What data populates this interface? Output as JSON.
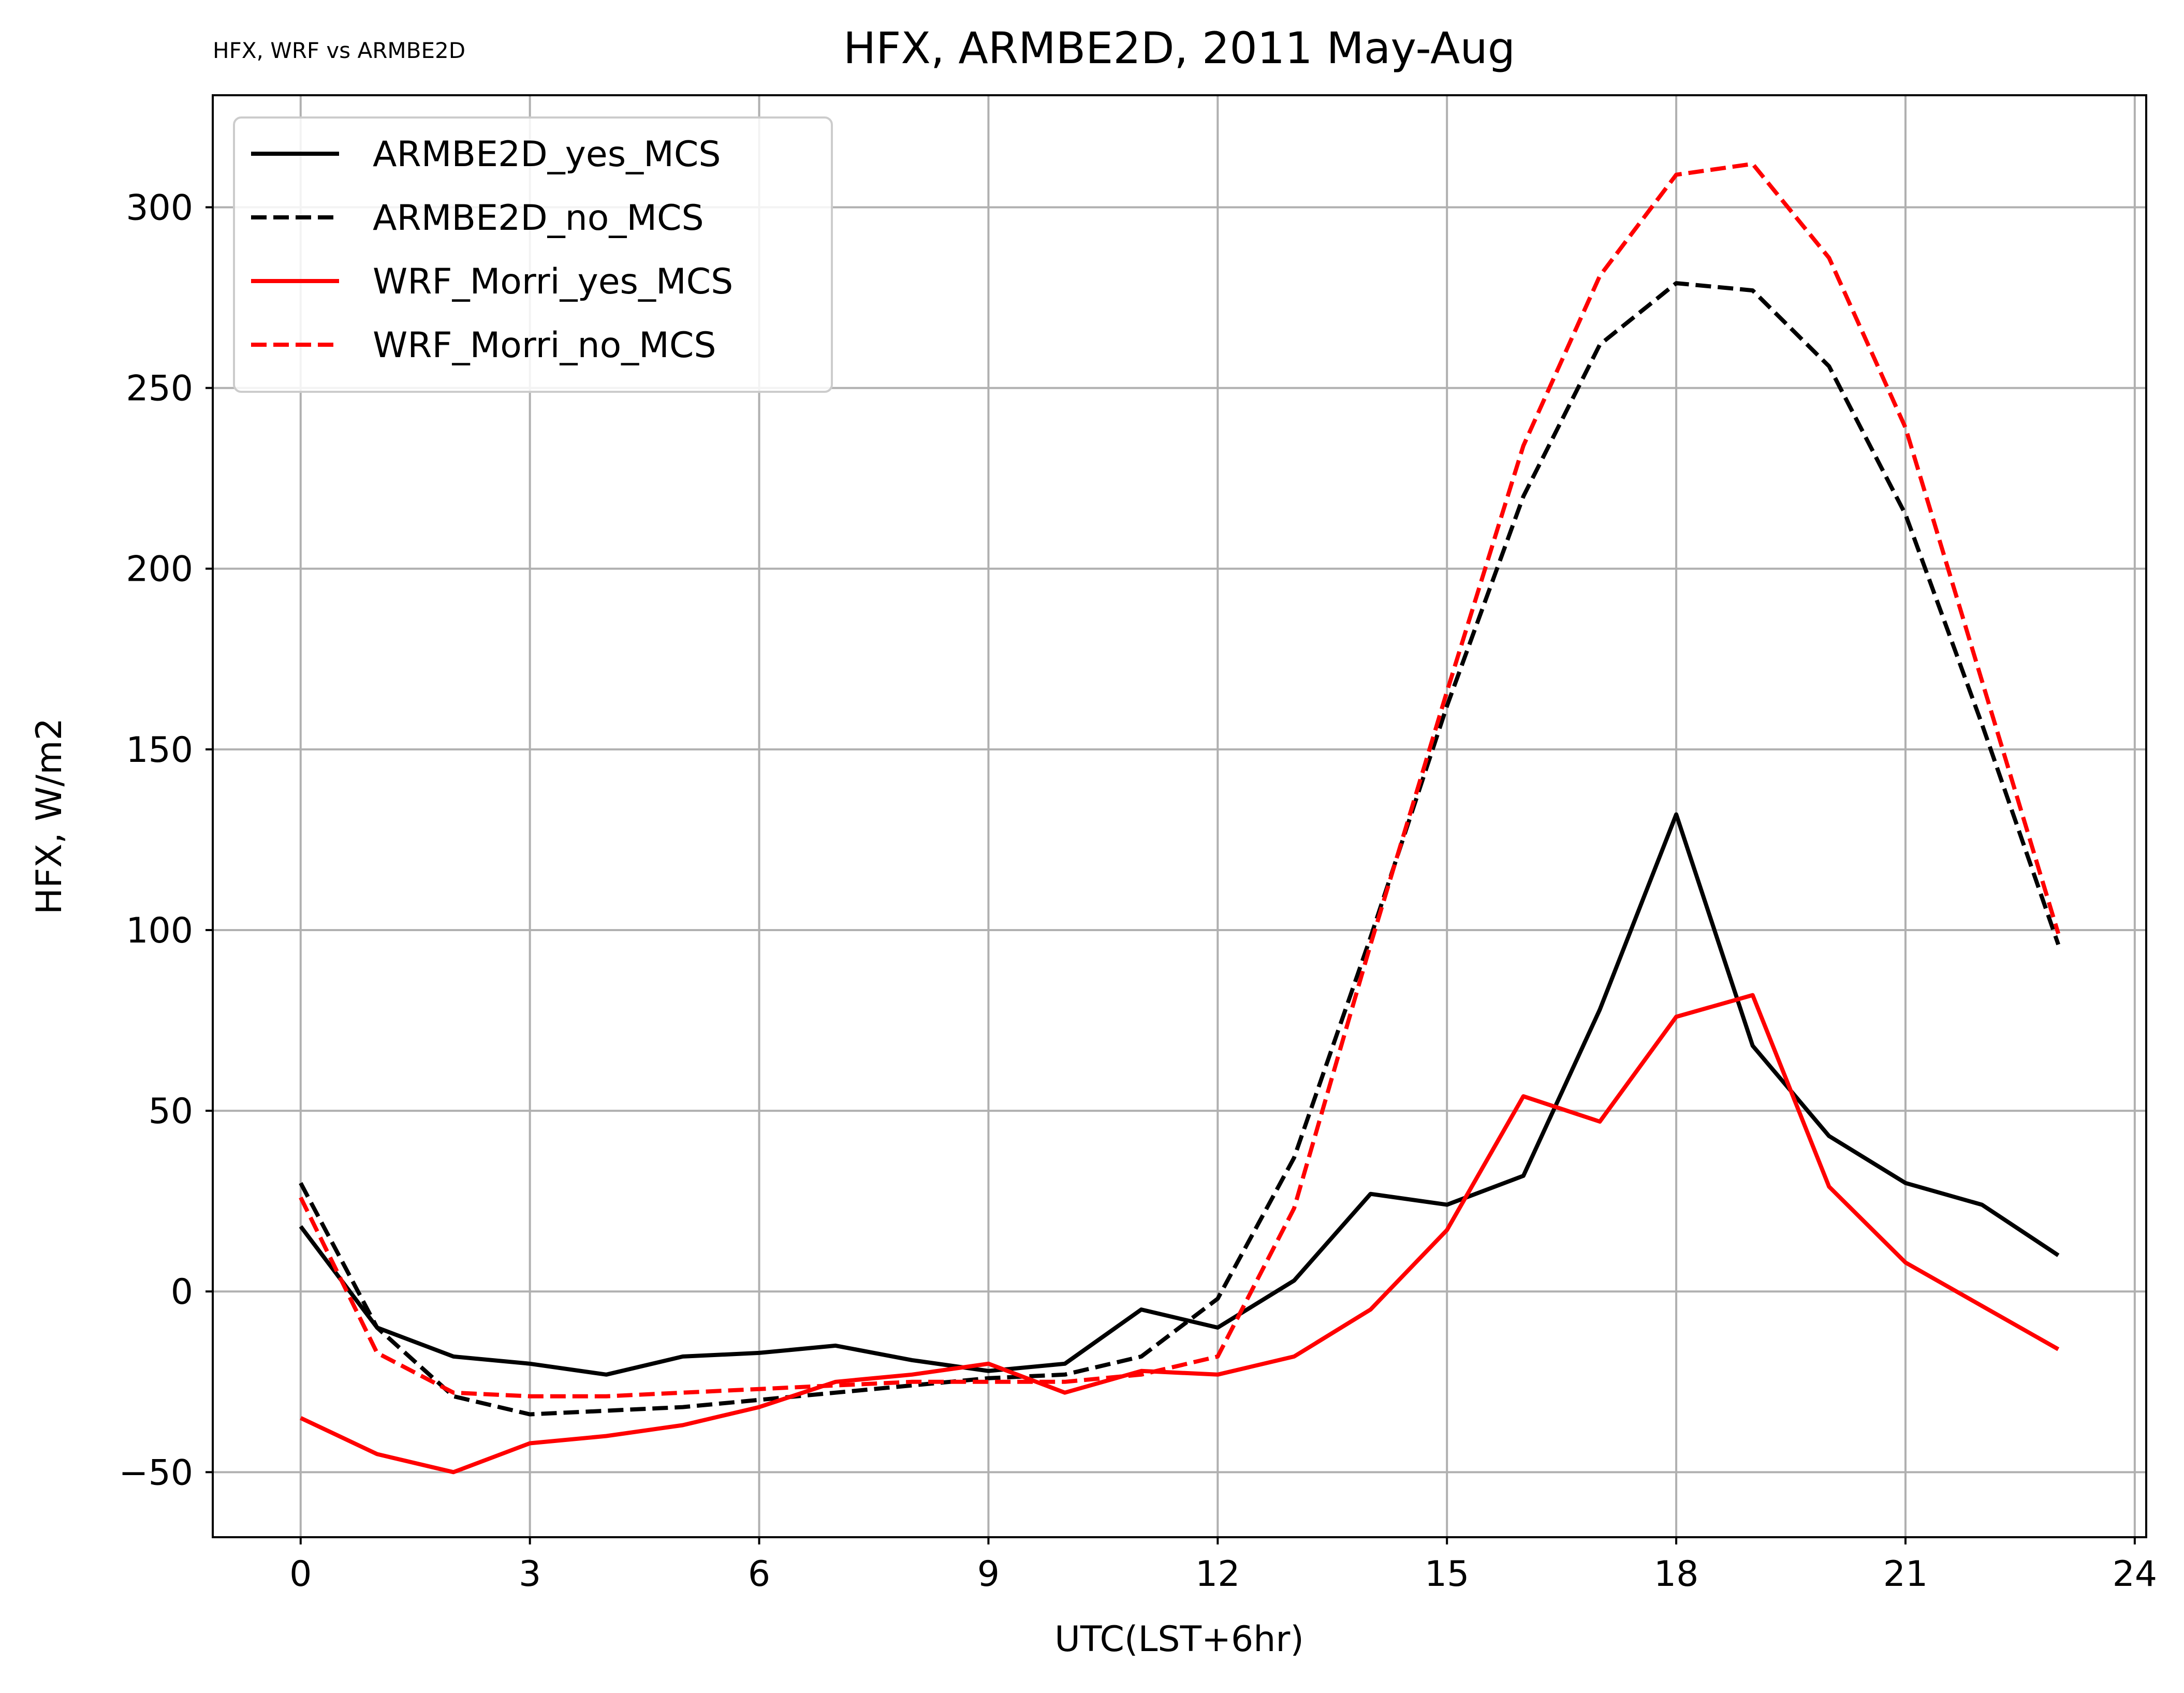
{
  "corner_label": "HFX, WRF vs ARMBE2D",
  "chart_data": {
    "type": "line",
    "title": "HFX, ARMBE2D, 2011 May-Aug",
    "xlabel": "UTC(LST+6hr)",
    "ylabel": "HFX, W/m2",
    "xlim": [
      -1.15,
      24.15
    ],
    "ylim": [
      -68,
      331
    ],
    "xticks": [
      0,
      3,
      6,
      9,
      12,
      15,
      18,
      21,
      24
    ],
    "xtick_labels": [
      "0",
      "3",
      "6",
      "9",
      "12",
      "15",
      "18",
      "21",
      "24"
    ],
    "yticks": [
      -50,
      0,
      50,
      100,
      150,
      200,
      250,
      300
    ],
    "ytick_labels": [
      "−50",
      "0",
      "50",
      "100",
      "150",
      "200",
      "250",
      "300"
    ],
    "grid": true,
    "legend_position": "upper-left",
    "x": [
      0,
      1,
      2,
      3,
      4,
      5,
      6,
      7,
      8,
      9,
      10,
      11,
      12,
      13,
      14,
      15,
      16,
      17,
      18,
      19,
      20,
      21,
      22,
      23
    ],
    "series": [
      {
        "name": "ARMBE2D_yes_MCS",
        "color": "#000000",
        "dash": "solid",
        "values": [
          18,
          -10,
          -18,
          -20,
          -23,
          -18,
          -17,
          -15,
          -19,
          -22,
          -20,
          -5,
          -10,
          3,
          27,
          24,
          32,
          78,
          132,
          68,
          43,
          30,
          24,
          10
        ]
      },
      {
        "name": "ARMBE2D_no_MCS",
        "color": "#000000",
        "dash": "dashed",
        "values": [
          30,
          -10,
          -29,
          -34,
          -33,
          -32,
          -30,
          -28,
          -26,
          -24,
          -23,
          -18,
          -2,
          37,
          98,
          162,
          220,
          262,
          279,
          277,
          256,
          215,
          157,
          96
        ]
      },
      {
        "name": "WRF_Morri_yes_MCS",
        "color": "#ff0000",
        "dash": "solid",
        "values": [
          -35,
          -45,
          -50,
          -42,
          -40,
          -37,
          -32,
          -25,
          -23,
          -20,
          -28,
          -22,
          -23,
          -18,
          -5,
          17,
          54,
          47,
          76,
          82,
          29,
          8,
          -4,
          -16
        ]
      },
      {
        "name": "WRF_Morri_no_MCS",
        "color": "#ff0000",
        "dash": "dashed",
        "values": [
          26,
          -17,
          -28,
          -29,
          -29,
          -28,
          -27,
          -26,
          -25,
          -25,
          -25,
          -23,
          -18,
          23,
          96,
          166,
          234,
          281,
          309,
          312,
          286,
          239,
          169,
          99
        ]
      }
    ]
  }
}
